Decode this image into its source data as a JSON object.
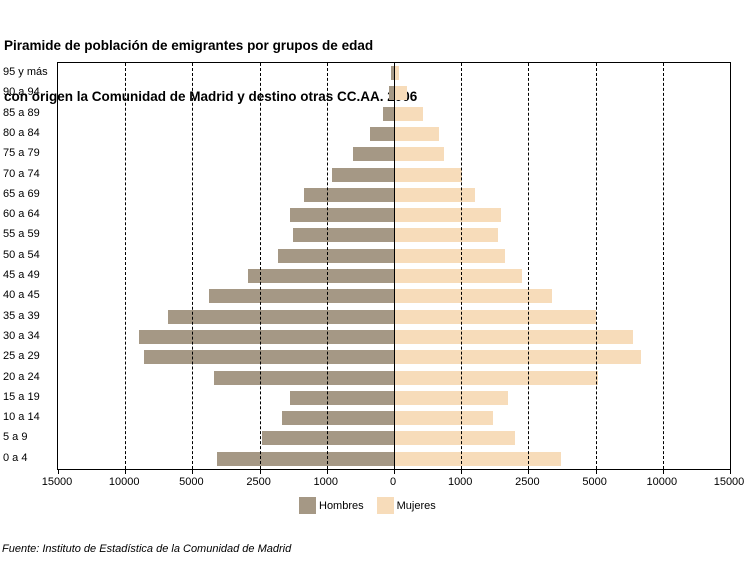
{
  "title": {
    "line1": "Piramide de población de emigrantes por grupos de edad",
    "line2": "con origen la Comunidad de Madrid y destino otras CC.AA. 2006"
  },
  "source": "Fuente: Instituto de Estadística de la Comunidad de Madrid",
  "colors": {
    "hombres": "#A59885",
    "mujeres": "#F7DCBA",
    "axis": "#000000"
  },
  "legend": [
    {
      "label": "Hombres",
      "color": "#A59885"
    },
    {
      "label": "Mujeres",
      "color": "#F7DCBA"
    }
  ],
  "chart_data": {
    "type": "bar",
    "subtype": "population-pyramid",
    "title": "Piramide de población de emigrantes por grupos de edad con origen la Comunidad de Madrid y destino otras CC.AA. 2006",
    "categories": [
      "95 y más",
      "90 a 94",
      "85 a 89",
      "80 a 84",
      "75 a 79",
      "70 a 74",
      "65 a 69",
      "60 a 64",
      "55 a 59",
      "50 a 54",
      "45 a 49",
      "40 a 45",
      "35 a 39",
      "30 a 34",
      "25 a 29",
      "20 a 24",
      "15 a 19",
      "10 a 14",
      "5 a 9",
      "0 a 4"
    ],
    "series": [
      {
        "name": "Hombres",
        "side": "left",
        "color": "#A59885",
        "values": [
          40,
          70,
          170,
          360,
          615,
          930,
          1500,
          1820,
          1760,
          2090,
          2930,
          4400,
          6790,
          9000,
          8600,
          4200,
          1820,
          2000,
          2450,
          4080
        ]
      },
      {
        "name": "Mujeres",
        "side": "right",
        "color": "#F7DCBA",
        "values": [
          75,
          200,
          430,
          670,
          750,
          1010,
          1310,
          1890,
          1830,
          1970,
          2350,
          3390,
          5050,
          7800,
          8400,
          5180,
          2050,
          1700,
          2200,
          3700
        ]
      }
    ],
    "axis": {
      "ticks": [
        0,
        1000,
        2500,
        5000,
        10000,
        15000
      ],
      "tick_labels": [
        "15000",
        "10000",
        "5000",
        "2500",
        "1000",
        "0",
        "1000",
        "2500",
        "5000",
        "10000",
        "15000"
      ],
      "scale": "piecewise-linear, equal pixel spacing between ticks",
      "grid": "vertical dashed gridlines at each tick, solid line at 0 (center)"
    },
    "legend_position": "bottom-center",
    "legend_entries": [
      "Hombres",
      "Mujeres"
    ]
  }
}
